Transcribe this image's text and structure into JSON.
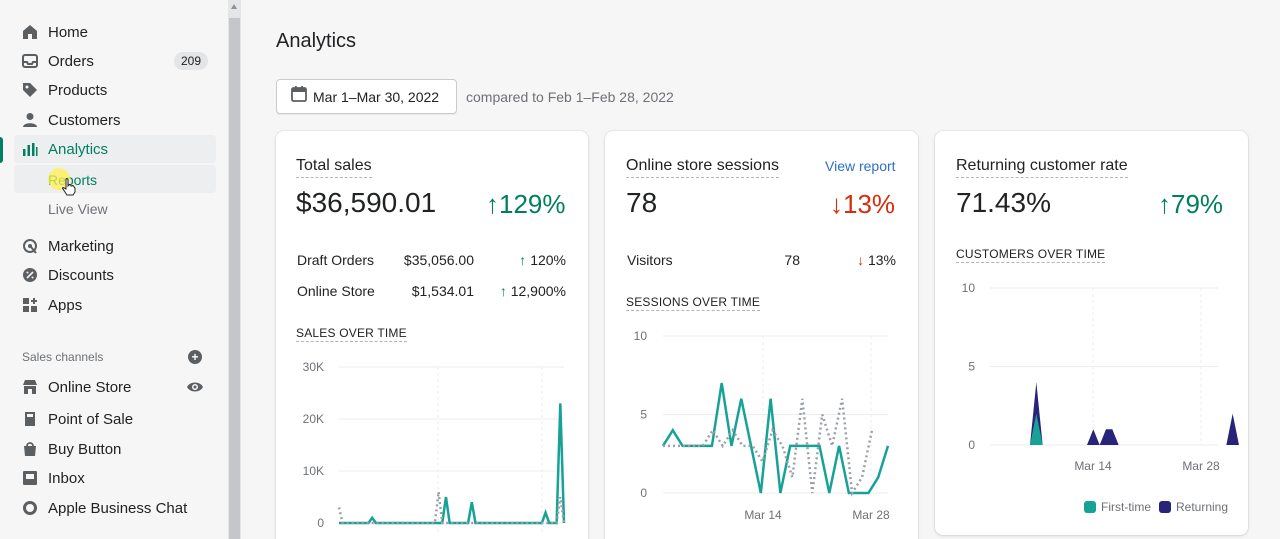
{
  "sidebar": {
    "nav": [
      {
        "label": "Home",
        "icon": "home-icon"
      },
      {
        "label": "Orders",
        "icon": "orders-icon",
        "badge": "209"
      },
      {
        "label": "Products",
        "icon": "tag-icon"
      },
      {
        "label": "Customers",
        "icon": "person-icon"
      },
      {
        "label": "Analytics",
        "icon": "analytics-icon"
      }
    ],
    "sub": [
      {
        "label": "Reports"
      },
      {
        "label": "Live View"
      }
    ],
    "nav2": [
      {
        "label": "Marketing",
        "icon": "marketing-icon"
      },
      {
        "label": "Discounts",
        "icon": "discount-icon"
      },
      {
        "label": "Apps",
        "icon": "apps-icon"
      }
    ],
    "channels_title": "Sales channels",
    "channels": [
      {
        "label": "Online Store",
        "icon": "store-icon"
      },
      {
        "label": "Point of Sale",
        "icon": "pos-icon"
      },
      {
        "label": "Buy Button",
        "icon": "buy-button-icon"
      },
      {
        "label": "Inbox",
        "icon": "inbox-icon"
      },
      {
        "label": "Apple Business Chat",
        "icon": "chat-icon"
      }
    ]
  },
  "page": {
    "title": "Analytics",
    "date_range": "Mar 1–Mar 30, 2022",
    "compare": "compared to Feb 1–Feb 28, 2022"
  },
  "colors": {
    "accent": "#008060",
    "teal": "#17a297",
    "navy": "#282479",
    "up": "#007f5f",
    "down": "#d72c0d",
    "link": "#2c6ecb"
  },
  "cards": {
    "sales": {
      "title": "Total sales",
      "value": "$36,590.01",
      "change": "129%",
      "rows": [
        {
          "label": "Draft Orders",
          "value": "$35,056.00",
          "change": "120%"
        },
        {
          "label": "Online Store",
          "value": "$1,534.01",
          "change": "12,900%"
        }
      ],
      "chart_title": "SALES OVER TIME"
    },
    "sessions": {
      "title": "Online store sessions",
      "link": "View report",
      "value": "78",
      "change": "13%",
      "rows": [
        {
          "label": "Visitors",
          "value": "78",
          "change": "13%"
        }
      ],
      "chart_title": "SESSIONS OVER TIME"
    },
    "returning": {
      "title": "Returning customer rate",
      "value": "71.43%",
      "change": "79%",
      "chart_title": "CUSTOMERS OVER TIME",
      "legend": [
        "First-time",
        "Returning"
      ]
    }
  },
  "chart_data": [
    {
      "type": "line",
      "title": "SALES OVER TIME",
      "ylim": [
        0,
        30000
      ],
      "yticks": [
        "0",
        "10K",
        "20K",
        "30K"
      ],
      "series": [
        {
          "values": [
            0,
            0,
            0,
            0,
            0,
            0,
            0,
            0,
            0,
            1000,
            0,
            0,
            0,
            0,
            0,
            0,
            0,
            0,
            0,
            0,
            0,
            0,
            0,
            0,
            0,
            0,
            0,
            0,
            0,
            5000,
            0,
            0,
            0,
            0,
            0,
            0,
            4000,
            0,
            0,
            0,
            0,
            0,
            0,
            0,
            0,
            0,
            0,
            0,
            0,
            0,
            0,
            0,
            0,
            0,
            0,
            0,
            2000,
            0,
            0,
            0,
            23000,
            0
          ]
        },
        {
          "values": [
            3000,
            0,
            0,
            0,
            0,
            0,
            0,
            0,
            0,
            0,
            0,
            0,
            0,
            0,
            0,
            0,
            0,
            0,
            0,
            0,
            0,
            0,
            0,
            0,
            0,
            0,
            0,
            6000,
            0,
            0,
            0,
            0,
            0,
            0,
            0,
            0,
            0,
            0,
            0,
            0,
            0,
            0,
            0,
            0,
            0,
            0,
            0,
            0,
            0,
            0,
            0,
            0,
            0,
            0,
            0,
            0,
            0,
            0,
            0,
            0,
            5000,
            0
          ]
        }
      ]
    },
    {
      "type": "line",
      "title": "SESSIONS OVER TIME",
      "ylim": [
        0,
        10
      ],
      "yticks": [
        "0",
        "5",
        "10"
      ],
      "xticks": [
        "Mar 14",
        "Mar 28"
      ],
      "series": [
        {
          "values": [
            3,
            4,
            3,
            3,
            3,
            3,
            7,
            3,
            6,
            3,
            0,
            6,
            0,
            3,
            3,
            3,
            3,
            0,
            3,
            0,
            0,
            0,
            1,
            3
          ]
        },
        {
          "values": [
            3,
            3,
            3,
            3,
            3,
            4,
            3,
            4,
            3,
            3,
            2,
            4,
            3,
            1,
            6,
            0,
            5,
            3,
            6,
            0,
            1,
            4
          ]
        }
      ]
    },
    {
      "type": "area",
      "title": "CUSTOMERS OVER TIME",
      "ylim": [
        0,
        10
      ],
      "yticks": [
        "0",
        "5",
        "10"
      ],
      "xticks": [
        "Mar 14",
        "Mar 28"
      ],
      "series": [
        {
          "name": "First-time",
          "points": [
            [
              0,
              0
            ],
            [
              1,
              2
            ],
            [
              2,
              0
            ]
          ]
        },
        {
          "name": "Returning",
          "points": [
            [
              0,
              0
            ],
            [
              1,
              4
            ],
            [
              2,
              0
            ],
            [
              9,
              0
            ],
            [
              10,
              1
            ],
            [
              11,
              0
            ],
            [
              12,
              1
            ],
            [
              13,
              1
            ],
            [
              14,
              0
            ],
            [
              31,
              0
            ],
            [
              32,
              2
            ],
            [
              33,
              0
            ]
          ]
        }
      ]
    }
  ]
}
